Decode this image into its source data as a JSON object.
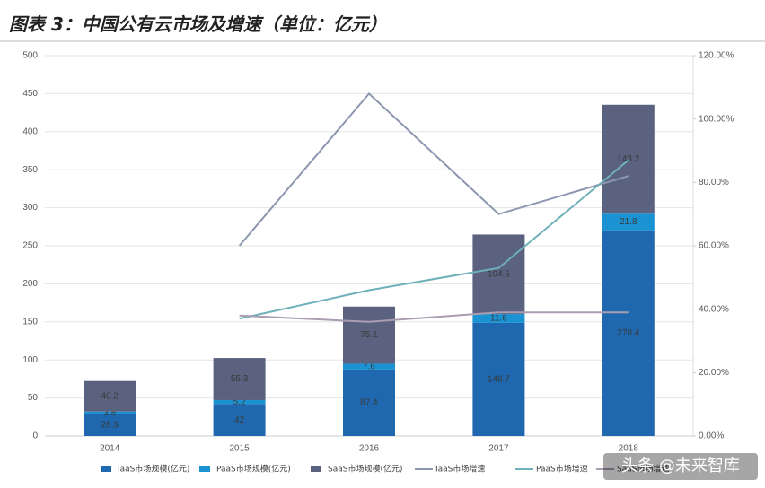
{
  "chart_data": {
    "type": "bar-line",
    "title": "图表 3：中国公有云市场及增速（单位：亿元）",
    "categories": [
      "2014",
      "2015",
      "2016",
      "2017",
      "2018"
    ],
    "series": [
      {
        "name": "IaaS市场规模(亿元)",
        "color": "#1f68b0",
        "values": [
          28.3,
          42,
          87.4,
          148.7,
          270.4
        ]
      },
      {
        "name": "PaaS市场规模(亿元)",
        "color": "#1b93d3",
        "values": [
          3.8,
          5.2,
          7.6,
          11.6,
          21.8
        ]
      },
      {
        "name": "SaaS市场规模(亿元)",
        "color": "#5a6280",
        "values": [
          40.2,
          55.3,
          75.1,
          104.5,
          143.2
        ]
      },
      {
        "name": "IaaS市场增速",
        "color": "#8d96b0",
        "axis": "y2",
        "values": [
          null,
          60,
          108,
          70,
          82
        ]
      },
      {
        "name": "PaaS市场增速",
        "color": "#6eb1ba",
        "axis": "y2",
        "values": [
          null,
          37,
          46,
          53,
          87
        ]
      },
      {
        "name": "SaaS市场增速",
        "color": "#aa9db2",
        "axis": "y2",
        "values": [
          null,
          38,
          36,
          39,
          39
        ]
      }
    ],
    "ylim": [
      0,
      500
    ],
    "yticks": [
      0,
      50,
      100,
      150,
      200,
      250,
      300,
      350,
      400,
      450,
      500
    ],
    "y2lim": [
      0,
      120
    ],
    "y2ticks": [
      {
        "value": 0,
        "label": "0.00%"
      },
      {
        "value": 20,
        "label": "20.00%"
      },
      {
        "value": 40,
        "label": "40.00%"
      },
      {
        "value": 60,
        "label": "60.00%"
      },
      {
        "value": 80,
        "label": "80.00%"
      },
      {
        "value": 100,
        "label": "100.00%"
      },
      {
        "value": 120,
        "label": "120.00%"
      }
    ],
    "grid": true,
    "watermark": "头条 @未来智库"
  }
}
